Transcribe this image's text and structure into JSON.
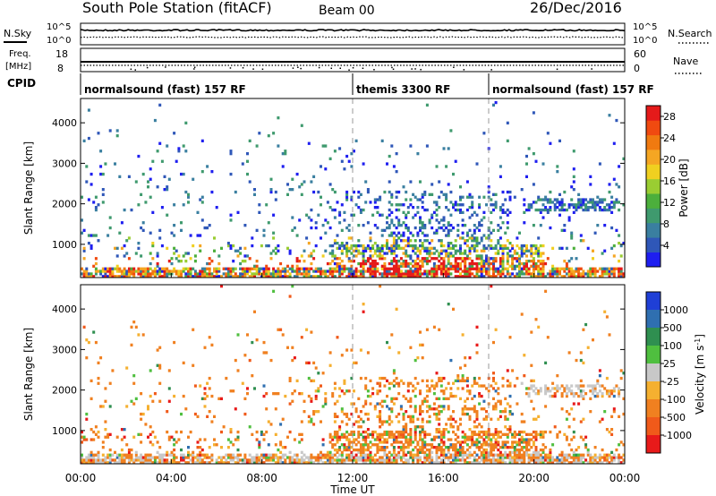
{
  "header": {
    "title": "South Pole Station (fitACF)",
    "beam": "Beam 00",
    "date": "26/Dec/2016"
  },
  "noise_panel": {
    "left_label": "N.Sky",
    "right_label": "N.Search",
    "left_ticks": [
      "10^5",
      "10^0"
    ],
    "right_ticks": [
      "10^5",
      "10^0"
    ]
  },
  "freq_panel": {
    "left_label_1": "Freq.",
    "left_label_2": "[MHz]",
    "right_label": "Nave",
    "left_ticks": [
      "18",
      "8"
    ],
    "right_ticks": [
      "60",
      "0"
    ]
  },
  "cpid": {
    "label": "CPID",
    "segments": [
      {
        "name": "normalsound (fast) 157 RF",
        "start": 0,
        "end": 12
      },
      {
        "name": "themis 3300 RF",
        "start": 12,
        "end": 18
      },
      {
        "name": "normalsound (fast) 157 RF",
        "start": 18,
        "end": 24
      }
    ]
  },
  "chart_data": [
    {
      "type": "heatmap",
      "name": "power",
      "ylabel": "Slant Range [km]",
      "yticks": [
        "1000",
        "2000",
        "3000",
        "4000"
      ],
      "ylim": [
        180,
        4600
      ],
      "xlim": [
        0,
        24
      ],
      "colorbar": {
        "label": "Power [dB]",
        "ticks": [
          "4",
          "8",
          "12",
          "16",
          "20",
          "24",
          "28"
        ],
        "range": [
          0,
          30
        ],
        "colors": [
          "#1e1ef0",
          "#2f57b8",
          "#3a7fa0",
          "#3f9a6e",
          "#4caf3c",
          "#9acd32",
          "#f0d020",
          "#f5a623",
          "#f07a10",
          "#f04a10",
          "#e51a1a"
        ]
      }
    },
    {
      "type": "heatmap",
      "name": "velocity",
      "ylabel": "Slant Range [km]",
      "yticks": [
        "1000",
        "2000",
        "3000",
        "4000"
      ],
      "ylim": [
        180,
        4600
      ],
      "xlim": [
        0,
        24
      ],
      "xticks": [
        "00:00",
        "04:00",
        "08:00",
        "12:00",
        "16:00",
        "20:00",
        "00:00"
      ],
      "xlabel": "Time UT",
      "colorbar": {
        "label": "Velocity [m s",
        "label_sup": "-1",
        "label_end": "]",
        "ticks": [
          "1000",
          "500",
          "100",
          "25",
          "-25",
          "-100",
          "-500",
          "-1000"
        ],
        "colors": [
          "#1f3fd6",
          "#2f6fb0",
          "#2f8f50",
          "#4fbf3f",
          "#c8c8c8",
          "#f5b030",
          "#f08020",
          "#f05a1a",
          "#e81a1a"
        ]
      }
    }
  ]
}
